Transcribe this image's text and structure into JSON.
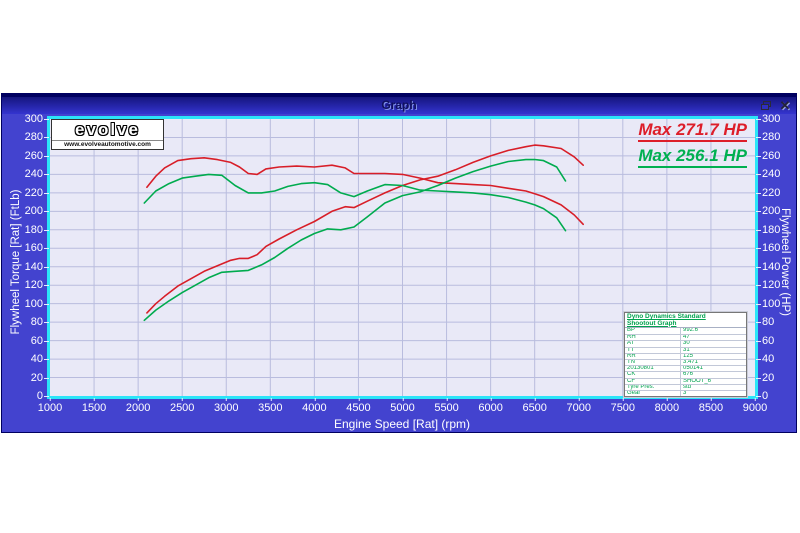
{
  "window": {
    "title": "Graph",
    "close_glyph": "✕"
  },
  "branding": {
    "logo_text": "evolve",
    "logo_url": "www.evolveautomotive.com"
  },
  "annotations": {
    "max_red": "Max 271.7 HP",
    "max_green": "Max 256.1 HP"
  },
  "info_table": {
    "header_line1": "Dyno Dynamics Standard",
    "header_line2": "Shootout Graph",
    "rows": [
      [
        "BP",
        "992.6"
      ],
      [
        "RH",
        "47"
      ],
      [
        "AT",
        "30"
      ],
      [
        "TT",
        "31"
      ],
      [
        "RR",
        "125"
      ],
      [
        "TN",
        "3.471"
      ],
      [
        "20130801",
        "050141"
      ],
      [
        "CK",
        "676"
      ],
      [
        "CF",
        "SHOOT_6"
      ],
      [
        "Tyre Pres.",
        "std"
      ],
      [
        "Gear",
        "3"
      ]
    ]
  },
  "colors": {
    "window_bg": "#4343cf",
    "titlebar_top": "#15157e",
    "titlebar_bottom": "#3434cf",
    "plot_bg": "#e9e9f7",
    "plot_border": "#2be4f8",
    "grid": "#b9bcde",
    "axis_text": "#ffffff",
    "run1_red": "#d81e28",
    "run2_green": "#00ab4e"
  },
  "chart_data": {
    "type": "line",
    "title": "Graph",
    "xlabel": "Engine Speed [Rat] (rpm)",
    "ylabel_left": "Flywheel Torque [Rat] (FtLb)",
    "ylabel_right": "Flywheel Power (HP)",
    "xlim": [
      1000,
      9000
    ],
    "ylim": [
      0,
      300
    ],
    "xticks": [
      1000,
      1500,
      2000,
      2500,
      3000,
      3500,
      4000,
      4500,
      5000,
      5500,
      6000,
      6500,
      7000,
      7500,
      8000,
      8500,
      9000
    ],
    "yticks": [
      0,
      20,
      40,
      60,
      80,
      100,
      120,
      140,
      160,
      180,
      200,
      220,
      240,
      260,
      280,
      300
    ],
    "grid": true,
    "legend_position": "none",
    "max_power_run1_hp": 271.7,
    "max_power_run2_hp": 256.1,
    "series": [
      {
        "name": "run1-torque-ftlb",
        "color": "#d81e28",
        "axis": "left",
        "x": [
          2100,
          2200,
          2300,
          2450,
          2600,
          2750,
          2900,
          3050,
          3150,
          3250,
          3350,
          3450,
          3600,
          3800,
          4000,
          4200,
          4350,
          4450,
          4600,
          4800,
          5000,
          5200,
          5400,
          5600,
          5800,
          6000,
          6200,
          6400,
          6500,
          6600,
          6800,
          6950,
          7050
        ],
        "y": [
          226,
          238,
          247,
          255,
          257,
          258,
          256,
          253,
          248,
          241,
          240,
          246,
          248,
          249,
          248,
          250,
          247,
          241,
          241,
          241,
          240,
          236,
          231,
          230,
          229,
          228,
          225,
          222,
          219,
          216,
          207,
          196,
          186
        ]
      },
      {
        "name": "run1-power-hp",
        "color": "#d81e28",
        "axis": "right",
        "x": [
          2100,
          2200,
          2300,
          2450,
          2600,
          2750,
          2900,
          3050,
          3150,
          3250,
          3350,
          3450,
          3600,
          3800,
          4000,
          4200,
          4350,
          4450,
          4600,
          4800,
          5000,
          5200,
          5400,
          5600,
          5800,
          6000,
          6200,
          6400,
          6500,
          6600,
          6800,
          6950,
          7050
        ],
        "y": [
          90,
          100,
          108,
          119,
          127,
          135,
          141,
          147,
          149,
          149,
          153,
          162,
          170,
          180,
          189,
          200,
          205,
          204,
          211,
          220,
          228,
          234,
          238,
          245,
          253,
          260,
          266,
          270,
          271.7,
          271,
          268,
          259,
          250
        ]
      },
      {
        "name": "run2-torque-ftlb",
        "color": "#00ab4e",
        "axis": "left",
        "x": [
          2070,
          2200,
          2350,
          2500,
          2650,
          2800,
          2950,
          3100,
          3250,
          3400,
          3550,
          3700,
          3850,
          4000,
          4150,
          4300,
          4450,
          4600,
          4800,
          5000,
          5200,
          5400,
          5600,
          5800,
          6000,
          6200,
          6400,
          6500,
          6600,
          6750,
          6850
        ],
        "y": [
          209,
          222,
          230,
          236,
          238,
          240,
          239,
          228,
          220,
          220,
          222,
          227,
          230,
          231,
          229,
          220,
          216,
          222,
          229,
          228,
          223,
          222,
          221,
          220,
          218,
          215,
          210,
          207,
          203,
          193,
          179
        ]
      },
      {
        "name": "run2-power-hp",
        "color": "#00ab4e",
        "axis": "right",
        "x": [
          2070,
          2200,
          2350,
          2500,
          2650,
          2800,
          2950,
          3100,
          3250,
          3400,
          3550,
          3700,
          3850,
          4000,
          4150,
          4300,
          4450,
          4600,
          4800,
          5000,
          5200,
          5400,
          5600,
          5800,
          6000,
          6200,
          6400,
          6500,
          6600,
          6750,
          6850
        ],
        "y": [
          82,
          93,
          103,
          112,
          120,
          128,
          134,
          135,
          136,
          142,
          150,
          160,
          169,
          176,
          181,
          180,
          183,
          194,
          209,
          217,
          221,
          228,
          236,
          243,
          249,
          254,
          256,
          256.1,
          255,
          248,
          233
        ]
      }
    ]
  }
}
